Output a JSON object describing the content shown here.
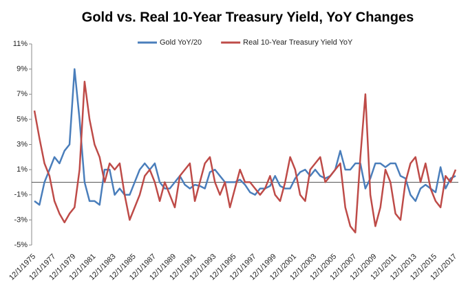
{
  "chart_data": {
    "type": "line",
    "title": "Gold vs. Real 10-Year Treasury Yield, YoY Changes",
    "categories": [
      "12/1/1975",
      null,
      null,
      null,
      "12/1/1977",
      null,
      null,
      null,
      "12/1/1979",
      null,
      null,
      null,
      "12/1/1981",
      null,
      null,
      null,
      "12/1/1983",
      null,
      null,
      null,
      "12/1/1985",
      null,
      null,
      null,
      "12/1/1987",
      null,
      null,
      null,
      "12/1/1989",
      null,
      null,
      null,
      "12/1/1991",
      null,
      null,
      null,
      "12/1/1993",
      null,
      null,
      null,
      "12/1/1995",
      null,
      null,
      null,
      "12/1/1997",
      null,
      null,
      null,
      "12/1/1999",
      null,
      null,
      null,
      "12/1/2001",
      null,
      null,
      null,
      "12/1/2003",
      null,
      null,
      null,
      "12/1/2005",
      null,
      null,
      null,
      "12/1/2007",
      null,
      null,
      null,
      "12/1/2009",
      null,
      null,
      null,
      "12/1/2011",
      null,
      null,
      null,
      "12/1/2013",
      null,
      null,
      null,
      "12/1/2015",
      null,
      null,
      null,
      "12/1/2017"
    ],
    "series": [
      {
        "name": "Gold YoY/20",
        "color": "#4a7ebb",
        "values": [
          -1.5,
          -1.8,
          0,
          1,
          2,
          1.5,
          2.5,
          3,
          9,
          5,
          0,
          -1.5,
          -1.5,
          -1.8,
          1,
          1,
          -1,
          -0.5,
          -1,
          -1,
          0,
          1,
          1.5,
          1,
          1.5,
          0,
          -0.5,
          -0.5,
          0,
          0.5,
          -0.2,
          -0.5,
          -0.2,
          -0.3,
          -0.5,
          0.8,
          1,
          0.5,
          0,
          0,
          0,
          0.2,
          -0.2,
          -0.8,
          -1,
          -0.5,
          -0.5,
          -0.3,
          0.5,
          -0.3,
          -0.5,
          -0.5,
          0.3,
          0.8,
          1,
          0.5,
          1,
          0.5,
          0.3,
          0.5,
          1,
          2.5,
          1,
          1,
          1.5,
          1.5,
          -0.5,
          0.3,
          1.5,
          1.5,
          1.2,
          1.5,
          1.5,
          0.5,
          0.3,
          -1,
          -1.5,
          -0.5,
          -0.2,
          -0.5,
          -0.8,
          1.2,
          -0.5,
          0.3,
          0.5
        ]
      },
      {
        "name": "Real 10-Year Treasury Yield YoY",
        "color": "#be4b48",
        "values": [
          5.7,
          3.5,
          1.5,
          0.5,
          -1.5,
          -2.5,
          -3.2,
          -2.5,
          -2,
          1,
          8,
          5,
          3,
          2,
          0,
          1.5,
          1,
          1.5,
          -1,
          -3,
          -2,
          -1,
          0.5,
          1,
          0,
          -1.5,
          0,
          -1,
          -2,
          0.5,
          1,
          1.5,
          -1.5,
          0,
          1.5,
          2,
          0,
          -1,
          0,
          -2,
          -0.5,
          1,
          0,
          0,
          -0.5,
          -1,
          -0.5,
          0.5,
          -1,
          -1.5,
          0,
          2,
          1,
          -1,
          -1.5,
          1,
          1.5,
          2,
          0,
          0.5,
          1,
          1.5,
          -2,
          -3.5,
          -4,
          2,
          7,
          -1,
          -3.5,
          -2,
          1,
          0,
          -2.5,
          -3,
          0,
          1.5,
          2,
          0,
          1.5,
          -0.5,
          -1.5,
          -2,
          0.5,
          0,
          1
        ]
      }
    ],
    "ylim": [
      -5,
      11
    ],
    "yticks": [
      {
        "value": -5,
        "label": "-5%"
      },
      {
        "value": -3,
        "label": "-3%"
      },
      {
        "value": -1,
        "label": "-1%"
      },
      {
        "value": 1,
        "label": "1%"
      },
      {
        "value": 3,
        "label": "3%"
      },
      {
        "value": 5,
        "label": "5%"
      },
      {
        "value": 7,
        "label": "7%"
      },
      {
        "value": 9,
        "label": "9%"
      },
      {
        "value": 11,
        "label": "11%"
      }
    ],
    "grid": false,
    "legend": "top"
  }
}
